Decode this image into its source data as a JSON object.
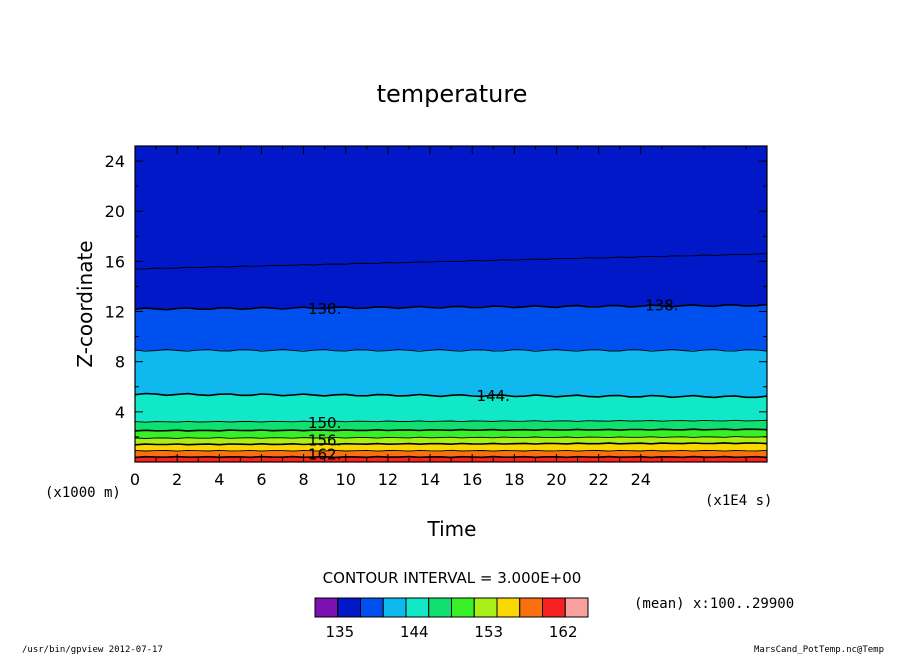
{
  "chart_data": {
    "type": "heatmap",
    "title": "temperature",
    "xlabel": "Time",
    "ylabel": "Z-coordinate",
    "x_unit_note": "(x1E4 s)",
    "y_unit_note": "(x1000 m)",
    "xlim": [
      0,
      29.99
    ],
    "ylim": [
      0,
      25.2
    ],
    "x_ticks": [
      0,
      2,
      4,
      6,
      8,
      10,
      12,
      14,
      16,
      18,
      20,
      22,
      24
    ],
    "x_tick_labels": [
      "0",
      "2",
      "4",
      "6",
      "8",
      "10",
      "12",
      "14",
      "16",
      "18",
      "20",
      "22",
      "24"
    ],
    "y_ticks": [
      4,
      8,
      12,
      16,
      20,
      24
    ],
    "y_tick_labels": [
      "4",
      "8",
      "12",
      "16",
      "20",
      "24"
    ],
    "contour_interval_text": "CONTOUR INTERVAL = 3.000E+00",
    "mean_note": "(mean) x:100..29900",
    "footer_left": "/usr/bin/gpview  2012-07-17",
    "footer_right": "MarsCand_PotTemp.nc@Temp",
    "level_bounds": [
      132,
      135,
      138,
      141,
      144,
      147,
      150,
      153,
      156,
      159,
      162,
      165
    ],
    "level_colors": [
      "#7a10b0",
      "#0018c8",
      "#0050f0",
      "#10b8f0",
      "#10e8c8",
      "#10e070",
      "#38f028",
      "#a8f018",
      "#f8d800",
      "#f87010",
      "#f82020",
      "#f8a0a0"
    ],
    "colorbar_labels": [
      {
        "value": 135,
        "text": "135"
      },
      {
        "value": 144,
        "text": "144"
      },
      {
        "value": 153,
        "text": "153"
      },
      {
        "value": 162,
        "text": "162"
      }
    ],
    "contours": [
      {
        "level": 162,
        "z": [
          0.4,
          0.4
        ]
      },
      {
        "level": 159,
        "z": [
          0.9,
          0.9
        ]
      },
      {
        "level": 156,
        "z": [
          1.4,
          1.5
        ]
      },
      {
        "level": 153,
        "z": [
          1.9,
          2.0
        ]
      },
      {
        "level": 150,
        "z": [
          2.5,
          2.6
        ]
      },
      {
        "level": 147,
        "z": [
          3.2,
          3.3
        ]
      },
      {
        "level": 144,
        "z": [
          5.4,
          5.2
        ]
      },
      {
        "level": 141,
        "z": [
          8.9,
          8.9
        ]
      },
      {
        "level": 138,
        "z": [
          12.2,
          12.5
        ]
      },
      {
        "level": 135,
        "z": [
          15.4,
          16.6
        ]
      }
    ],
    "contour_labels": [
      {
        "text": "138.",
        "x": 9.0,
        "z": 12.2
      },
      {
        "text": "138.",
        "x": 25.0,
        "z": 12.5
      },
      {
        "text": "144.",
        "x": 17.0,
        "z": 5.25
      },
      {
        "text": "150.",
        "x": 9.0,
        "z": 3.1
      },
      {
        "text": "156.",
        "x": 9.0,
        "z": 1.7
      },
      {
        "text": "162.",
        "x": 9.0,
        "z": 0.6
      }
    ]
  }
}
